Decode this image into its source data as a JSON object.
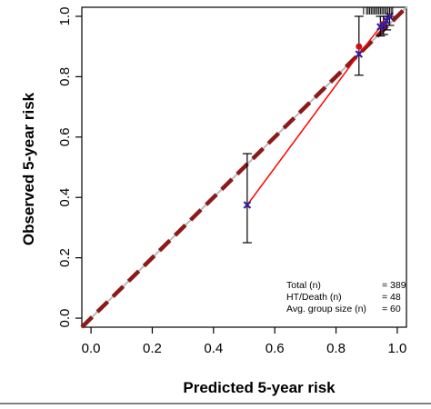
{
  "chart_data": {
    "type": "scatter",
    "title": "",
    "xlabel": "Predicted  5-year risk",
    "ylabel": "Observed 5-year risk",
    "xlim": [
      -0.03,
      1.03
    ],
    "ylim": [
      -0.03,
      1.03
    ],
    "x_ticks": [
      "0.0",
      "0.2",
      "0.4",
      "0.6",
      "0.8",
      "1.0"
    ],
    "y_ticks": [
      "0.0",
      "0.2",
      "0.4",
      "0.6",
      "0.8",
      "1.0"
    ],
    "grid": false,
    "ideal_line": {
      "from": [
        -0.03,
        -0.03
      ],
      "to": [
        1.03,
        1.03
      ],
      "style": "dashed",
      "color": "#8B1A1A"
    },
    "reference_line_color": "#BBBBBB",
    "fit_line_color": "#FF0000",
    "series": [
      {
        "marker": "x",
        "color": "#3A1A9E",
        "points": [
          {
            "x": 0.51,
            "y": 0.375,
            "ci": [
              0.25,
              0.545
            ]
          },
          {
            "x": 0.875,
            "y": 0.875,
            "ci": [
              0.805,
              1.0
            ]
          },
          {
            "x": 0.945,
            "y": 0.965,
            "ci": [
              0.935,
              1.0
            ]
          },
          {
            "x": 0.955,
            "y": 0.97,
            "ci": [
              0.94,
              1.0
            ]
          },
          {
            "x": 0.965,
            "y": 0.985,
            "ci": [
              0.955,
              1.0
            ]
          },
          {
            "x": 0.975,
            "y": 1.0,
            "ci": [
              0.97,
              1.0
            ]
          }
        ]
      }
    ],
    "dot_points": [
      {
        "x": 0.875,
        "y": 0.9
      },
      {
        "x": 0.955,
        "y": 0.975
      }
    ],
    "rug_x": [
      0.89,
      0.9,
      0.905,
      0.91,
      0.915,
      0.92,
      0.925,
      0.93,
      0.935,
      0.94,
      0.945,
      0.95,
      0.955,
      0.96,
      0.965,
      0.97,
      0.975,
      0.98,
      0.985
    ],
    "stats": [
      {
        "label": "Total (n)",
        "value": "= 389"
      },
      {
        "label": "HT/Death (n)",
        "value": "= 48"
      },
      {
        "label": "Avg. group size (n)",
        "value": "= 60"
      }
    ]
  }
}
